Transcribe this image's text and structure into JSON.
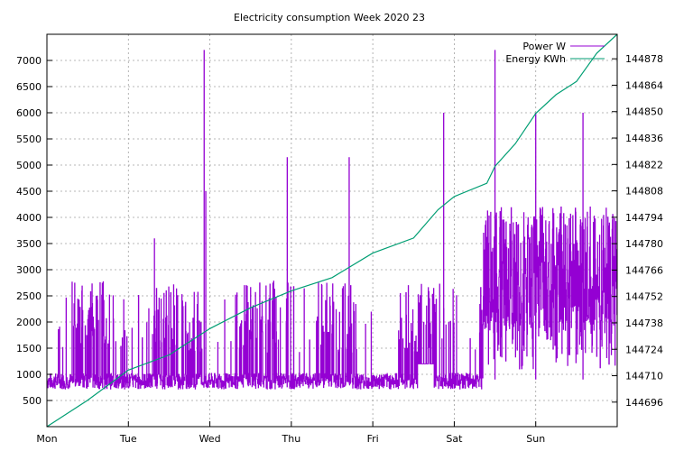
{
  "chart_data": {
    "type": "line",
    "title": "Electricity consumption Week 2020 23",
    "xlabel": "",
    "ylabel": "",
    "y2label": "",
    "x_ticks": [
      "Mon",
      "Tue",
      "Wed",
      "Thu",
      "Fri",
      "Sat",
      "Sun"
    ],
    "x_range_days": [
      0,
      7
    ],
    "ylim": [
      0,
      7500
    ],
    "y_ticks": [
      500,
      1000,
      1500,
      2000,
      2500,
      3000,
      3500,
      4000,
      4500,
      5000,
      5500,
      6000,
      6500,
      7000
    ],
    "y2lim": [
      144683,
      144891
    ],
    "y2_ticks": [
      144696,
      144710,
      144724,
      144738,
      144752,
      144766,
      144780,
      144794,
      144808,
      144822,
      144836,
      144850,
      144864,
      144878
    ],
    "grid": true,
    "legend_position": "top-right",
    "colors": {
      "power": "#9400d3",
      "energy": "#009e73",
      "grid": "#a0a0a0"
    },
    "series": [
      {
        "name": "Power W",
        "axis": "left",
        "color": "#9400d3",
        "style": "dense step trace; baseline ~750-1000 W with frequent spikes to 2000-2800 W, peaks 7200 W on Wed and Sat",
        "peaks": [
          {
            "x_day": 0.43,
            "y": 2600
          },
          {
            "x_day": 0.68,
            "y": 2750
          },
          {
            "x_day": 1.32,
            "y": 3600
          },
          {
            "x_day": 1.93,
            "y": 7200
          },
          {
            "x_day": 1.95,
            "y": 4500
          },
          {
            "x_day": 2.95,
            "y": 5150
          },
          {
            "x_day": 3.71,
            "y": 5150
          },
          {
            "x_day": 4.87,
            "y": 6000
          },
          {
            "x_day": 5.5,
            "y": 7200
          },
          {
            "x_day": 6.0,
            "y": 6000
          },
          {
            "x_day": 6.58,
            "y": 6000
          }
        ]
      },
      {
        "name": "Energy KWh",
        "axis": "right",
        "color": "#009e73",
        "x_days": [
          0,
          0.5,
          1.0,
          1.5,
          2.0,
          2.5,
          3.0,
          3.5,
          4.0,
          4.5,
          4.8,
          5.0,
          5.4,
          5.5,
          5.75,
          6.0,
          6.25,
          6.5,
          6.75,
          7.0
        ],
        "values": [
          144683,
          144697,
          144713,
          144721,
          144735,
          144746,
          144755,
          144762,
          144775,
          144783,
          144798,
          144805,
          144812,
          144821,
          144833,
          144849,
          144859,
          144866,
          144881,
          144891
        ]
      }
    ]
  }
}
